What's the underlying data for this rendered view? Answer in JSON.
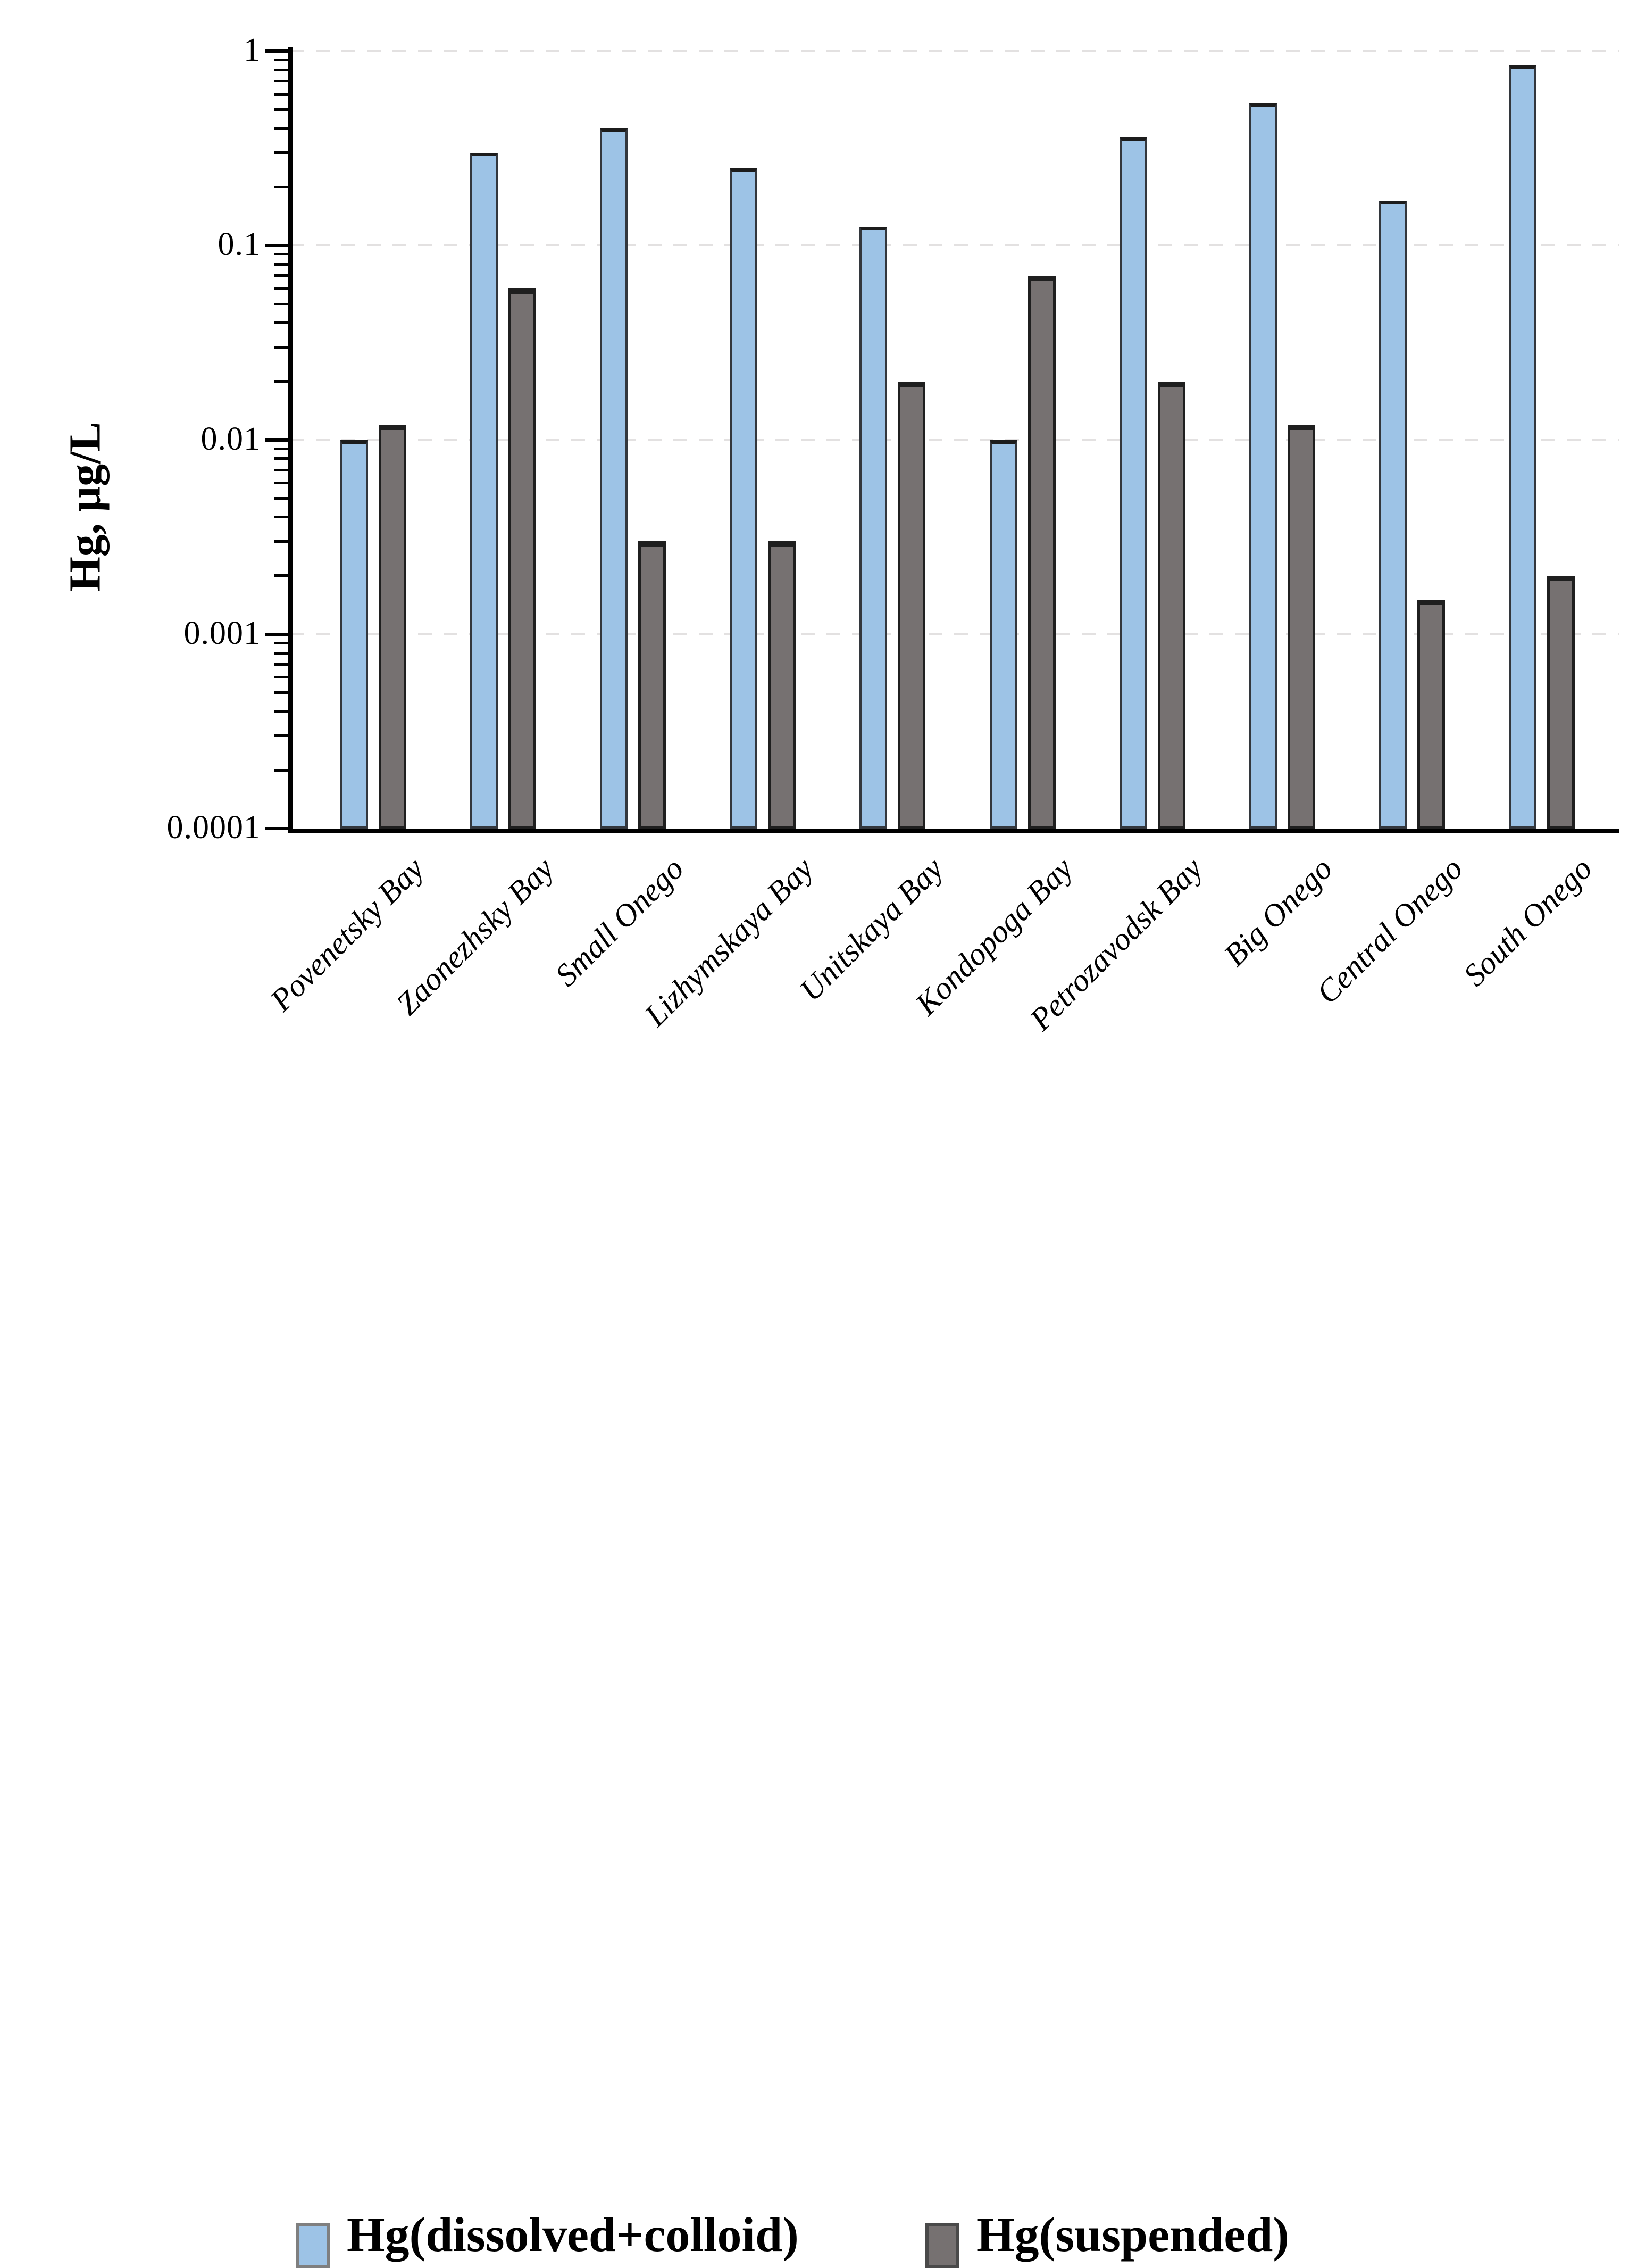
{
  "chart_data": {
    "type": "bar",
    "title": "",
    "ylabel": "Hg, µg/L",
    "xlabel": "",
    "categories": [
      "Povenetsky Bay",
      "Zaonezhsky Bay",
      "Small Onego",
      "Lizhymskaya Bay",
      "Unitskaya Bay",
      "Kondopoga Bay",
      "Petrozavodsk Bay",
      "Big Onego",
      "Central Onego",
      "South Onego"
    ],
    "series": [
      {
        "name": "Hg(dissolved+colloid)",
        "color": "#9DC3E6",
        "values": [
          0.01,
          0.3,
          0.4,
          0.25,
          0.125,
          0.01,
          0.36,
          0.54,
          0.17,
          0.85
        ]
      },
      {
        "name": "Hg(suspended)",
        "color": "#767171",
        "values": [
          0.012,
          0.06,
          0.003,
          0.003,
          0.02,
          0.07,
          0.02,
          0.012,
          0.0015,
          0.002
        ]
      }
    ],
    "y_axis": {
      "scale": "log",
      "min": 0.0001,
      "max": 1,
      "tick_labels": [
        "1",
        "0.1",
        "0.01",
        "0.001",
        "0.0001"
      ]
    },
    "grid": "horizontal-dashed",
    "legend_position": "bottom"
  },
  "colors": {
    "bar_blue": "#9DC3E6",
    "bar_gray": "#767171",
    "gridline": "#E3E1E1",
    "axis": "#000000",
    "text": "#000000",
    "background": "#FFFFFF"
  }
}
